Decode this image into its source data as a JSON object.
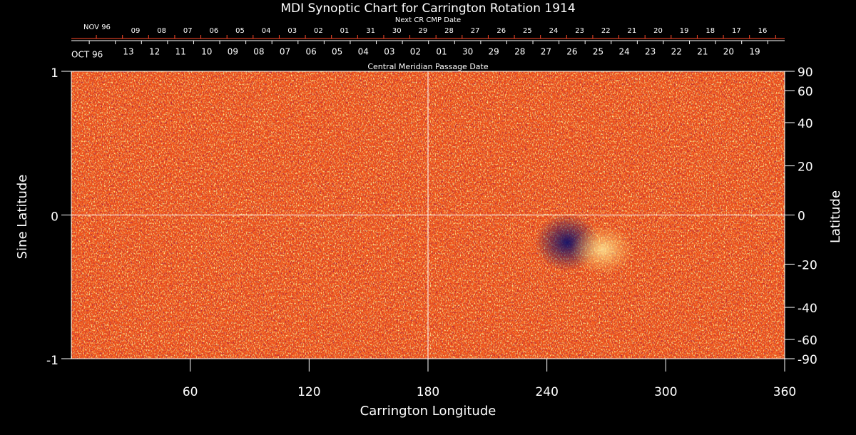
{
  "chart_data": {
    "type": "synoptic",
    "title": "MDI Synoptic Chart for Carrington Rotation 1914",
    "x_label": "Carrington Longitude",
    "y_label": "Sine Latitude",
    "y2_label": "Latitude",
    "xlim": [
      0,
      360
    ],
    "xticks": [
      60,
      120,
      180,
      240,
      300,
      360
    ],
    "ylim": [
      -1,
      1
    ],
    "yticks": [
      -1,
      0,
      1
    ],
    "y2_scale": "sine",
    "y2ticks": [
      90,
      60,
      40,
      20,
      0,
      -20,
      -40,
      -60,
      -90
    ],
    "reference_lines": {
      "x": 180,
      "y": 0
    },
    "cmp_dates": {
      "label": "Central Meridian Passage Date",
      "start": "OCT 96",
      "categories": [
        "13",
        "12",
        "11",
        "10",
        "09",
        "08",
        "07",
        "06",
        "05",
        "04",
        "03",
        "02",
        "01",
        "30",
        "29",
        "28",
        "27",
        "26",
        "25",
        "24",
        "23",
        "22",
        "21",
        "20",
        "19"
      ]
    },
    "next_cmp_dates": {
      "label": "Next CR CMP Date",
      "start": "NOV 96",
      "color": "#ff4a2a",
      "categories": [
        "09",
        "08",
        "07",
        "06",
        "05",
        "04",
        "03",
        "02",
        "01",
        "31",
        "30",
        "29",
        "28",
        "27",
        "26",
        "25",
        "24",
        "23",
        "22",
        "21",
        "20",
        "19",
        "18",
        "17",
        "16"
      ]
    }
  }
}
